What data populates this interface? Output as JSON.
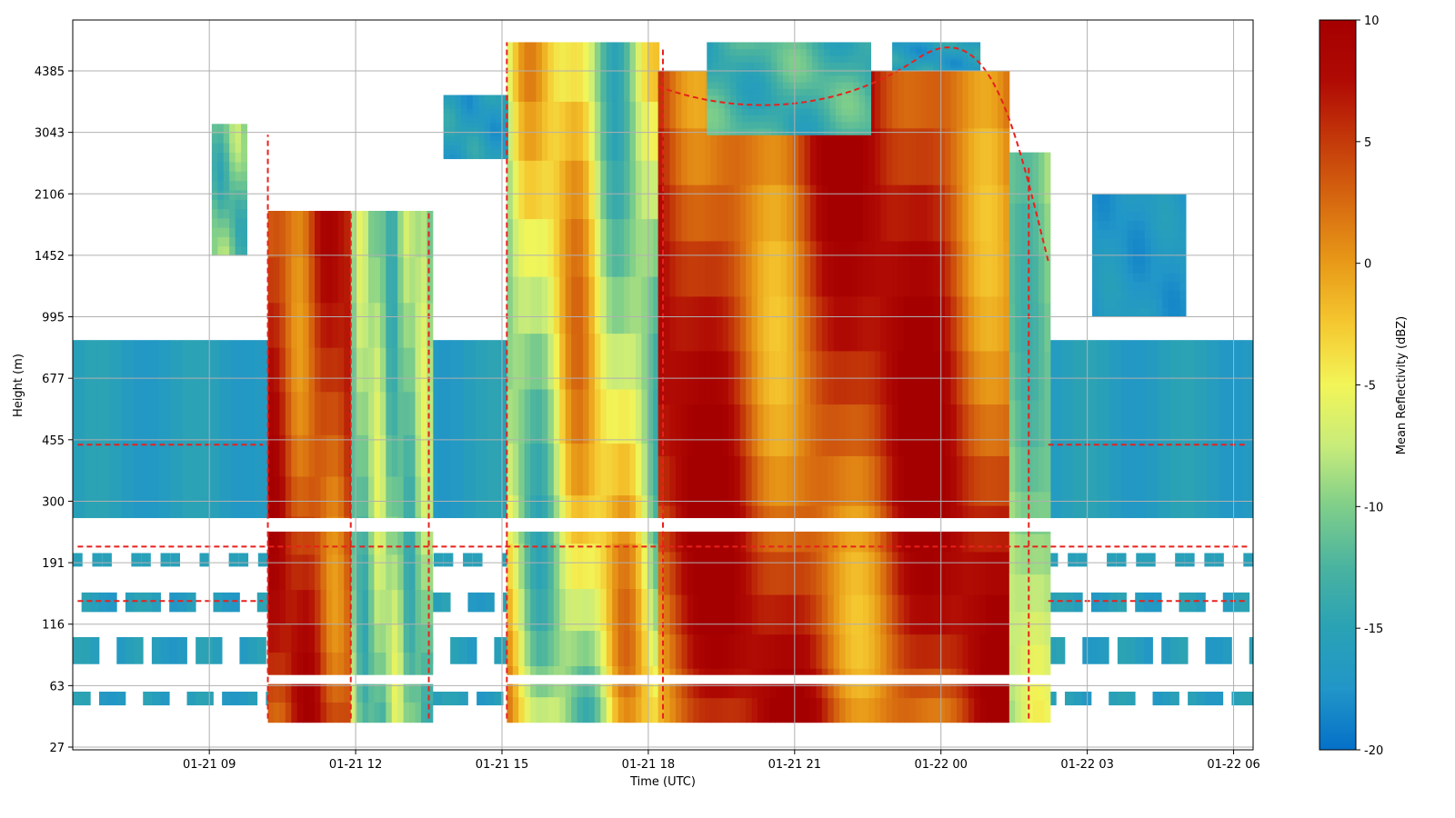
{
  "chart_data": {
    "type": "heatmap",
    "title": "",
    "xlabel": "Time (UTC)",
    "ylabel": "Height (m)",
    "x_tick_labels": [
      "01-21 09",
      "01-21 12",
      "01-21 15",
      "01-21 18",
      "01-21 21",
      "01-22 00",
      "01-22 03",
      "01-22 06"
    ],
    "x_tick_hours": [
      9,
      12,
      15,
      18,
      21,
      24,
      27,
      30
    ],
    "xlim_hours": [
      6.2,
      30.4
    ],
    "y_tick_labels": [
      "27",
      "63",
      "116",
      "191",
      "300",
      "455",
      "677",
      "995",
      "1452",
      "2106",
      "3043",
      "4385"
    ],
    "colorbar": {
      "label": "Mean Reflectivity (dBZ)",
      "range": [
        -20,
        10
      ],
      "ticks": [
        10,
        5,
        0,
        -5,
        -10,
        -15,
        -20
      ],
      "colors": [
        "#0570c8",
        "#2196c8",
        "#2aa2b5",
        "#4ab3a0",
        "#7fce8a",
        "#c8ec7a",
        "#f2f558",
        "#f5c830",
        "#e89a18",
        "#d76a10",
        "#c43a0a",
        "#b00a04",
        "#a50000"
      ]
    },
    "grid": true,
    "contour_color": "#e8211c",
    "contour_style": "dashed",
    "features": [
      {
        "t_start": 9.0,
        "t_end": 9.8,
        "h_bottom": 1452,
        "h_top": 3043,
        "dbz": -13
      },
      {
        "t_start": 10.2,
        "t_end": 11.9,
        "h_bottom": 40,
        "h_top": 1900,
        "dbz": 6
      },
      {
        "t_start": 11.9,
        "t_end": 13.5,
        "h_bottom": 40,
        "h_top": 1900,
        "dbz": -11
      },
      {
        "t_start": 15.1,
        "t_end": 18.2,
        "h_bottom": 40,
        "h_top": 5000,
        "dbz": -5
      },
      {
        "t_start": 18.2,
        "t_end": 25.3,
        "h_bottom": 40,
        "h_top": 4385,
        "dbz": 7
      },
      {
        "t_start": 27.2,
        "t_end": 28.9,
        "h_bottom": 995,
        "h_top": 2106,
        "dbz": -17
      }
    ]
  }
}
